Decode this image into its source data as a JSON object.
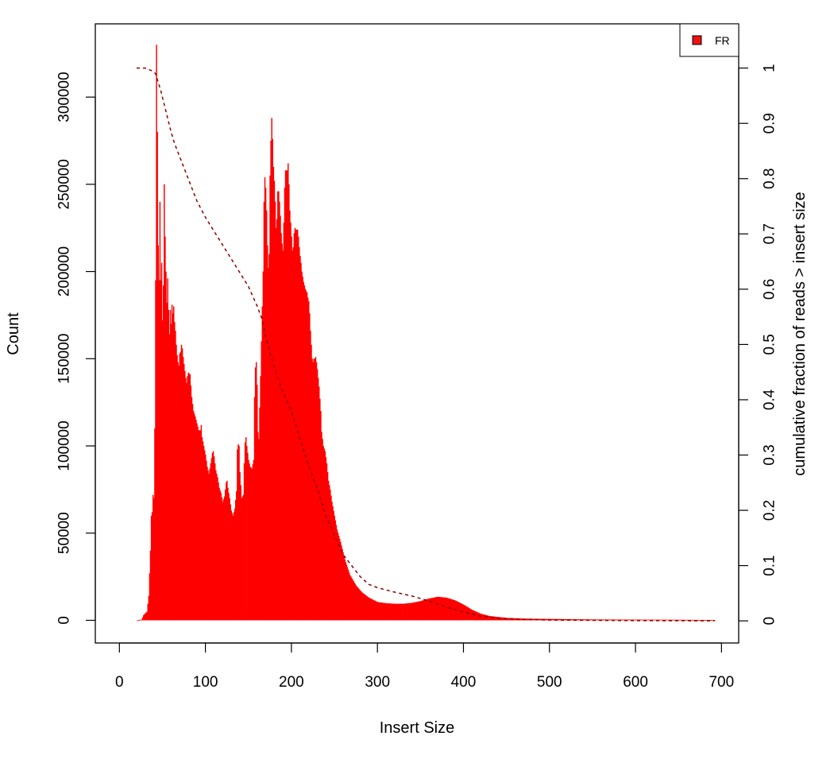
{
  "chart_data": {
    "type": "bar",
    "title": "",
    "xlabel": "Insert Size",
    "ylabel": "Count",
    "y2label": "cumulative fraction of reads > insert size",
    "xlim": [
      -28,
      720
    ],
    "ylim": [
      -13000,
      342000
    ],
    "y2lim": [
      -0.04,
      1.08
    ],
    "xticks": [
      0,
      100,
      200,
      300,
      400,
      500,
      600,
      700
    ],
    "yticks": [
      0,
      50000,
      100000,
      150000,
      200000,
      250000,
      300000
    ],
    "y2ticks": [
      0,
      0.1,
      0.2,
      0.3,
      0.4,
      0.5,
      0.6,
      0.7,
      0.8,
      0.9,
      1
    ],
    "grid": false,
    "legend": {
      "position": "top-right",
      "entries": [
        "FR"
      ]
    },
    "colors": {
      "bars": "#ff0000",
      "cumulative": "#8b0000",
      "legend_swatch": "#ee1111"
    },
    "series": [
      {
        "name": "FR",
        "type": "bar",
        "x_start": 20,
        "x_end": 692,
        "peaks": [
          [
            20,
            0
          ],
          [
            26,
            500
          ],
          [
            28,
            3000
          ],
          [
            30,
            4000
          ],
          [
            32,
            5000
          ],
          [
            34,
            14000
          ],
          [
            36,
            40000
          ],
          [
            37,
            60000
          ],
          [
            38,
            62000
          ],
          [
            39,
            72000
          ],
          [
            40,
            70000
          ],
          [
            41,
            110000
          ],
          [
            42,
            195000
          ],
          [
            43,
            330000
          ],
          [
            44,
            280000
          ],
          [
            45,
            215000
          ],
          [
            46,
            195000
          ],
          [
            47,
            240000
          ],
          [
            48,
            195000
          ],
          [
            49,
            205000
          ],
          [
            50,
            172000
          ],
          [
            51,
            192000
          ],
          [
            52,
            250000
          ],
          [
            53,
            220000
          ],
          [
            54,
            200000
          ],
          [
            55,
            182000
          ],
          [
            56,
            196000
          ],
          [
            57,
            178000
          ],
          [
            58,
            164000
          ],
          [
            59,
            178000
          ],
          [
            60,
            170000
          ],
          [
            61,
            181000
          ],
          [
            62,
            176000
          ],
          [
            63,
            180000
          ],
          [
            64,
            171000
          ],
          [
            65,
            166000
          ],
          [
            66,
            158000
          ],
          [
            67,
            152000
          ],
          [
            68,
            148000
          ],
          [
            69,
            146000
          ],
          [
            70,
            153000
          ],
          [
            71,
            154000
          ],
          [
            72,
            158000
          ],
          [
            73,
            156000
          ],
          [
            74,
            151000
          ],
          [
            75,
            147000
          ],
          [
            76,
            143000
          ],
          [
            77,
            139000
          ],
          [
            78,
            136000
          ],
          [
            79,
            140000
          ],
          [
            80,
            142000
          ],
          [
            82,
            141000
          ],
          [
            84,
            128000
          ],
          [
            86,
            120000
          ],
          [
            88,
            117000
          ],
          [
            90,
            113000
          ],
          [
            92,
            109000
          ],
          [
            94,
            109000
          ],
          [
            95,
            112000
          ],
          [
            96,
            105000
          ],
          [
            98,
            100000
          ],
          [
            100,
            95000
          ],
          [
            102,
            88000
          ],
          [
            104,
            84000
          ],
          [
            106,
            90000
          ],
          [
            108,
            96000
          ],
          [
            109,
            97000
          ],
          [
            110,
            94000
          ],
          [
            112,
            86000
          ],
          [
            114,
            82000
          ],
          [
            116,
            76000
          ],
          [
            118,
            73000
          ],
          [
            120,
            68000
          ],
          [
            122,
            71000
          ],
          [
            124,
            79000
          ],
          [
            125,
            80000
          ],
          [
            126,
            76000
          ],
          [
            128,
            70000
          ],
          [
            130,
            63000
          ],
          [
            132,
            60000
          ],
          [
            134,
            64000
          ],
          [
            136,
            74000
          ],
          [
            137,
            98000
          ],
          [
            138,
            101000
          ],
          [
            139,
            100000
          ],
          [
            140,
            85000
          ],
          [
            142,
            70000
          ],
          [
            144,
            72000
          ],
          [
            145,
            90000
          ],
          [
            146,
            102000
          ],
          [
            147,
            105000
          ],
          [
            148,
            100000
          ],
          [
            150,
            92000
          ],
          [
            152,
            88000
          ],
          [
            154,
            87000
          ],
          [
            156,
            92000
          ],
          [
            157,
            128000
          ],
          [
            158,
            145000
          ],
          [
            159,
            148000
          ],
          [
            160,
            135000
          ],
          [
            161,
            108000
          ],
          [
            162,
            104000
          ],
          [
            164,
            140000
          ],
          [
            166,
            180000
          ],
          [
            167,
            200000
          ],
          [
            168,
            240000
          ],
          [
            169,
            254000
          ],
          [
            170,
            248000
          ],
          [
            171,
            235000
          ],
          [
            172,
            215000
          ],
          [
            173,
            202000
          ],
          [
            174,
            210000
          ],
          [
            175,
            255000
          ],
          [
            176,
            275000
          ],
          [
            177,
            288000
          ],
          [
            178,
            276000
          ],
          [
            179,
            260000
          ],
          [
            180,
            252000
          ],
          [
            181,
            240000
          ],
          [
            182,
            225000
          ],
          [
            183,
            230000
          ],
          [
            184,
            246000
          ],
          [
            185,
            246000
          ],
          [
            186,
            240000
          ],
          [
            187,
            232000
          ],
          [
            188,
            222000
          ],
          [
            189,
            216000
          ],
          [
            190,
            212000
          ],
          [
            191,
            228000
          ],
          [
            192,
            248000
          ],
          [
            193,
            258000
          ],
          [
            194,
            258000
          ],
          [
            195,
            258000
          ],
          [
            196,
            262000
          ],
          [
            197,
            250000
          ],
          [
            198,
            235000
          ],
          [
            199,
            228000
          ],
          [
            200,
            220000
          ],
          [
            201,
            212000
          ],
          [
            202,
            214000
          ],
          [
            203,
            222000
          ],
          [
            204,
            225000
          ],
          [
            205,
            224000
          ],
          [
            206,
            224000
          ],
          [
            207,
            224000
          ],
          [
            208,
            220000
          ],
          [
            209,
            214000
          ],
          [
            210,
            209000
          ],
          [
            211,
            205000
          ],
          [
            212,
            200000
          ],
          [
            213,
            197000
          ],
          [
            214,
            194000
          ],
          [
            215,
            192000
          ],
          [
            216,
            190000
          ],
          [
            217,
            189000
          ],
          [
            218,
            188000
          ],
          [
            219,
            185000
          ],
          [
            220,
            183000
          ],
          [
            221,
            176000
          ],
          [
            222,
            166000
          ],
          [
            223,
            158000
          ],
          [
            224,
            150000
          ],
          [
            225,
            148000
          ],
          [
            226,
            150000
          ],
          [
            227,
            150000
          ],
          [
            228,
            151000
          ],
          [
            229,
            148000
          ],
          [
            230,
            144000
          ],
          [
            231,
            139000
          ],
          [
            232,
            134000
          ],
          [
            233,
            127000
          ],
          [
            234,
            120000
          ],
          [
            235,
            108000
          ],
          [
            237,
            100000
          ],
          [
            239,
            97000
          ],
          [
            241,
            90000
          ],
          [
            243,
            80000
          ],
          [
            245,
            75000
          ],
          [
            247,
            68000
          ],
          [
            250,
            60000
          ],
          [
            253,
            52000
          ],
          [
            257,
            45000
          ],
          [
            262,
            35000
          ],
          [
            268,
            26000
          ],
          [
            275,
            20000
          ],
          [
            282,
            16000
          ],
          [
            290,
            13000
          ],
          [
            300,
            10500
          ],
          [
            310,
            9800
          ],
          [
            320,
            9500
          ],
          [
            330,
            9500
          ],
          [
            340,
            10000
          ],
          [
            350,
            11000
          ],
          [
            360,
            12500
          ],
          [
            370,
            13500
          ],
          [
            380,
            13000
          ],
          [
            390,
            11500
          ],
          [
            400,
            9000
          ],
          [
            410,
            6000
          ],
          [
            420,
            3800
          ],
          [
            430,
            2500
          ],
          [
            440,
            1900
          ],
          [
            450,
            1400
          ],
          [
            470,
            1000
          ],
          [
            500,
            800
          ],
          [
            550,
            500
          ],
          [
            600,
            400
          ],
          [
            650,
            300
          ],
          [
            692,
            200
          ]
        ]
      },
      {
        "name": "cumulative fraction of reads > insert size",
        "type": "line",
        "style": "dashed",
        "points": [
          [
            20,
            1
          ],
          [
            30,
            1
          ],
          [
            38,
            0.995
          ],
          [
            42,
            0.99
          ],
          [
            44,
            0.98
          ],
          [
            48,
            0.96
          ],
          [
            52,
            0.935
          ],
          [
            56,
            0.91
          ],
          [
            60,
            0.885
          ],
          [
            64,
            0.864
          ],
          [
            70,
            0.84
          ],
          [
            80,
            0.8
          ],
          [
            90,
            0.76
          ],
          [
            100,
            0.73
          ],
          [
            110,
            0.705
          ],
          [
            120,
            0.68
          ],
          [
            130,
            0.655
          ],
          [
            140,
            0.63
          ],
          [
            150,
            0.605
          ],
          [
            160,
            0.57
          ],
          [
            166,
            0.545
          ],
          [
            170,
            0.515
          ],
          [
            176,
            0.48
          ],
          [
            184,
            0.44
          ],
          [
            190,
            0.415
          ],
          [
            200,
            0.38
          ],
          [
            210,
            0.33
          ],
          [
            220,
            0.28
          ],
          [
            230,
            0.24
          ],
          [
            240,
            0.19
          ],
          [
            250,
            0.155
          ],
          [
            260,
            0.12
          ],
          [
            270,
            0.1
          ],
          [
            280,
            0.08
          ],
          [
            290,
            0.066
          ],
          [
            300,
            0.06
          ],
          [
            320,
            0.052
          ],
          [
            340,
            0.045
          ],
          [
            360,
            0.036
          ],
          [
            380,
            0.025
          ],
          [
            400,
            0.016
          ],
          [
            420,
            0.009
          ],
          [
            440,
            0.005
          ],
          [
            460,
            0.003
          ],
          [
            500,
            0.0015
          ],
          [
            600,
            0.0005
          ],
          [
            692,
            0
          ]
        ]
      }
    ]
  }
}
